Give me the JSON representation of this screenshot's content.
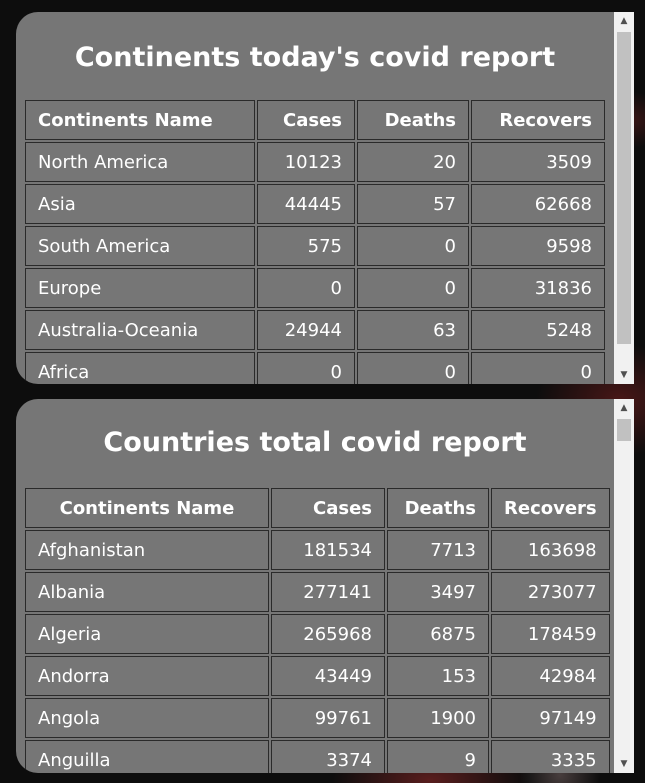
{
  "continents": {
    "title": "Continents today's covid report",
    "headers": [
      "Continents Name",
      "Cases",
      "Deaths",
      "Recovers"
    ],
    "rows": [
      [
        "North America",
        "10123",
        "20",
        "3509"
      ],
      [
        "Asia",
        "44445",
        "57",
        "62668"
      ],
      [
        "South America",
        "575",
        "0",
        "9598"
      ],
      [
        "Europe",
        "0",
        "0",
        "31836"
      ],
      [
        "Australia-Oceania",
        "24944",
        "63",
        "5248"
      ],
      [
        "Africa",
        "0",
        "0",
        "0"
      ]
    ]
  },
  "countries": {
    "title": "Countries total covid report",
    "headers": [
      "Continents Name",
      "Cases",
      "Deaths",
      "Recovers"
    ],
    "rows": [
      [
        "Afghanistan",
        "181534",
        "7713",
        "163698"
      ],
      [
        "Albania",
        "277141",
        "3497",
        "273077"
      ],
      [
        "Algeria",
        "265968",
        "6875",
        "178459"
      ],
      [
        "Andorra",
        "43449",
        "153",
        "42984"
      ],
      [
        "Angola",
        "99761",
        "1900",
        "97149"
      ],
      [
        "Anguilla",
        "3374",
        "9",
        "3335"
      ]
    ]
  },
  "icons": {
    "scroll_up": "▲",
    "scroll_down": "▼"
  }
}
